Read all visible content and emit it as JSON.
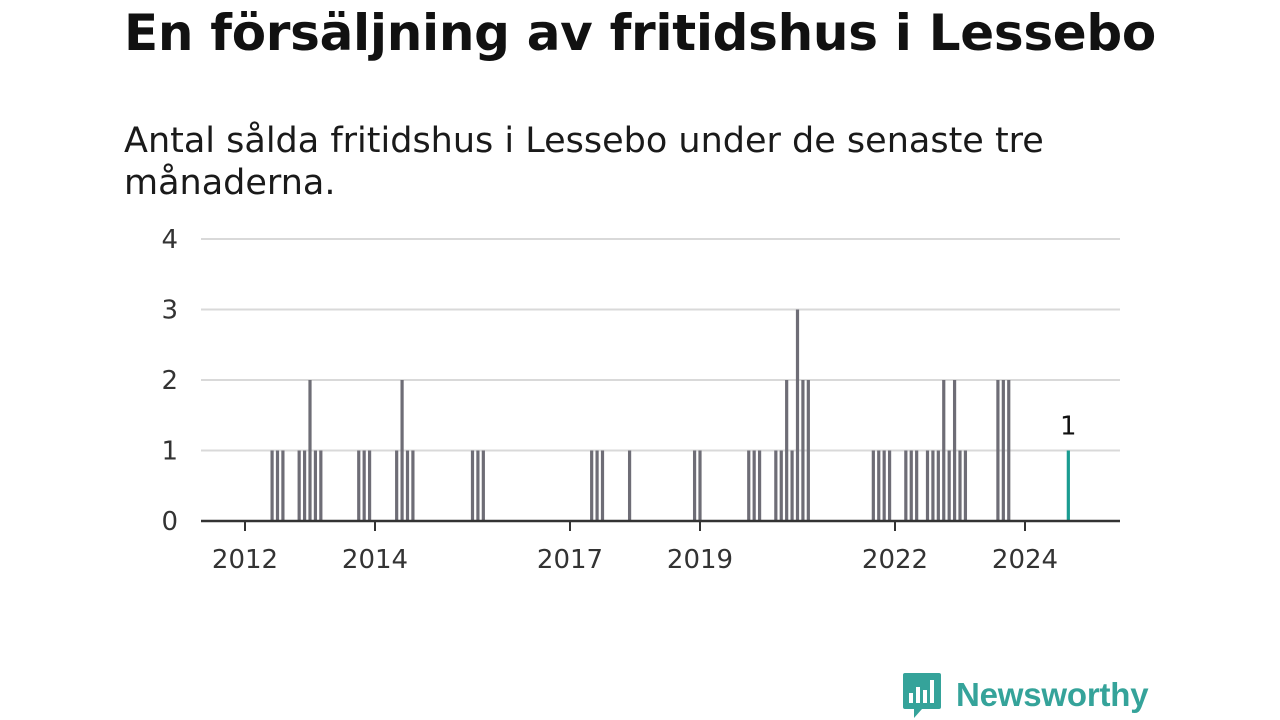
{
  "title": "En försäljning av fritidshus i Lessebo",
  "subtitle": "Antal sålda fritidshus i Lessebo under de senaste tre månaderna.",
  "brand": "Newsworthy",
  "colors": {
    "bar": "#6e6d76",
    "highlight": "#1a9c91",
    "grid": "#d9d9d9",
    "axis": "#333333",
    "brand": "#35a39a"
  },
  "chart_data": {
    "type": "bar",
    "x_axis": "date (month)",
    "ylim": [
      0,
      4
    ],
    "y_ticks": [
      0,
      1,
      2,
      3,
      4
    ],
    "x_ticks": [
      "2012",
      "2014",
      "2017",
      "2019",
      "2022",
      "2024"
    ],
    "grid": true,
    "highlight_label": "1",
    "points": [
      {
        "x": "2012-06",
        "y": 1
      },
      {
        "x": "2012-07",
        "y": 1
      },
      {
        "x": "2012-08",
        "y": 1
      },
      {
        "x": "2012-11",
        "y": 1
      },
      {
        "x": "2012-12",
        "y": 1
      },
      {
        "x": "2013-01",
        "y": 2
      },
      {
        "x": "2013-02",
        "y": 1
      },
      {
        "x": "2013-03",
        "y": 1
      },
      {
        "x": "2013-10",
        "y": 1
      },
      {
        "x": "2013-11",
        "y": 1
      },
      {
        "x": "2013-12",
        "y": 1
      },
      {
        "x": "2014-05",
        "y": 1
      },
      {
        "x": "2014-06",
        "y": 2
      },
      {
        "x": "2014-07",
        "y": 1
      },
      {
        "x": "2014-08",
        "y": 1
      },
      {
        "x": "2015-07",
        "y": 1
      },
      {
        "x": "2015-08",
        "y": 1
      },
      {
        "x": "2015-09",
        "y": 1
      },
      {
        "x": "2017-05",
        "y": 1
      },
      {
        "x": "2017-06",
        "y": 1
      },
      {
        "x": "2017-07",
        "y": 1
      },
      {
        "x": "2017-12",
        "y": 1
      },
      {
        "x": "2018-12",
        "y": 1
      },
      {
        "x": "2019-01",
        "y": 1
      },
      {
        "x": "2019-10",
        "y": 1
      },
      {
        "x": "2019-11",
        "y": 1
      },
      {
        "x": "2019-12",
        "y": 1
      },
      {
        "x": "2020-03",
        "y": 1
      },
      {
        "x": "2020-04",
        "y": 1
      },
      {
        "x": "2020-05",
        "y": 2
      },
      {
        "x": "2020-06",
        "y": 1
      },
      {
        "x": "2020-07",
        "y": 3
      },
      {
        "x": "2020-08",
        "y": 2
      },
      {
        "x": "2020-09",
        "y": 2
      },
      {
        "x": "2021-09",
        "y": 1
      },
      {
        "x": "2021-10",
        "y": 1
      },
      {
        "x": "2021-11",
        "y": 1
      },
      {
        "x": "2021-12",
        "y": 1
      },
      {
        "x": "2022-03",
        "y": 1
      },
      {
        "x": "2022-04",
        "y": 1
      },
      {
        "x": "2022-05",
        "y": 1
      },
      {
        "x": "2022-07",
        "y": 1
      },
      {
        "x": "2022-08",
        "y": 1
      },
      {
        "x": "2022-09",
        "y": 1
      },
      {
        "x": "2022-10",
        "y": 2
      },
      {
        "x": "2022-11",
        "y": 1
      },
      {
        "x": "2022-12",
        "y": 2
      },
      {
        "x": "2023-01",
        "y": 1
      },
      {
        "x": "2023-02",
        "y": 1
      },
      {
        "x": "2023-08",
        "y": 2
      },
      {
        "x": "2023-09",
        "y": 2
      },
      {
        "x": "2023-10",
        "y": 2
      },
      {
        "x": "2024-09",
        "y": 1,
        "highlight": true
      }
    ]
  }
}
